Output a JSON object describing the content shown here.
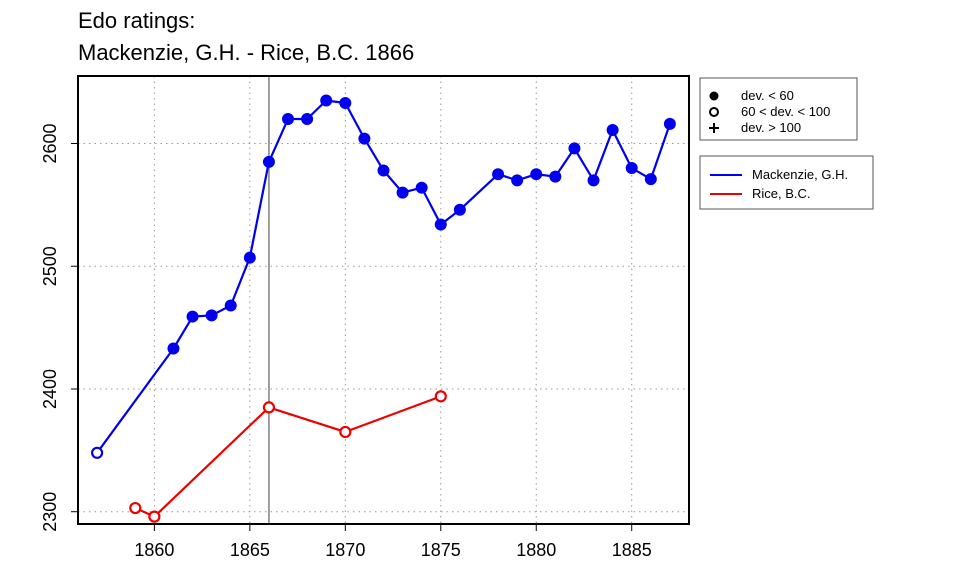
{
  "title_line1": "Edo ratings:",
  "title_line2": "Mackenzie, G.H. - Rice, B.C. 1866",
  "chart_data": {
    "type": "line",
    "title": "Edo ratings: Mackenzie, G.H. - Rice, B.C. 1866",
    "xlabel": "",
    "ylabel": "",
    "xlim": [
      1856,
      1888
    ],
    "ylim": [
      2290,
      2655
    ],
    "x_ticks": [
      1860,
      1865,
      1870,
      1875,
      1880,
      1885
    ],
    "y_ticks": [
      2300,
      2400,
      2500,
      2600
    ],
    "grid": true,
    "reference_line_x": 1866,
    "series": [
      {
        "name": "Mackenzie, G.H.",
        "color": "#0000ee",
        "points": [
          {
            "x": 1857,
            "y": 2348,
            "marker": "open"
          },
          {
            "x": 1861,
            "y": 2433,
            "marker": "filled"
          },
          {
            "x": 1862,
            "y": 2459,
            "marker": "filled"
          },
          {
            "x": 1863,
            "y": 2460,
            "marker": "filled"
          },
          {
            "x": 1864,
            "y": 2468,
            "marker": "filled"
          },
          {
            "x": 1865,
            "y": 2507,
            "marker": "filled"
          },
          {
            "x": 1866,
            "y": 2585,
            "marker": "filled"
          },
          {
            "x": 1867,
            "y": 2620,
            "marker": "filled"
          },
          {
            "x": 1868,
            "y": 2620,
            "marker": "filled"
          },
          {
            "x": 1869,
            "y": 2635,
            "marker": "filled"
          },
          {
            "x": 1870,
            "y": 2633,
            "marker": "filled"
          },
          {
            "x": 1871,
            "y": 2604,
            "marker": "filled"
          },
          {
            "x": 1872,
            "y": 2578,
            "marker": "filled"
          },
          {
            "x": 1873,
            "y": 2560,
            "marker": "filled"
          },
          {
            "x": 1874,
            "y": 2564,
            "marker": "filled"
          },
          {
            "x": 1875,
            "y": 2534,
            "marker": "filled"
          },
          {
            "x": 1876,
            "y": 2546,
            "marker": "filled"
          },
          {
            "x": 1878,
            "y": 2575,
            "marker": "filled"
          },
          {
            "x": 1879,
            "y": 2570,
            "marker": "filled"
          },
          {
            "x": 1880,
            "y": 2575,
            "marker": "filled"
          },
          {
            "x": 1881,
            "y": 2573,
            "marker": "filled"
          },
          {
            "x": 1882,
            "y": 2596,
            "marker": "filled"
          },
          {
            "x": 1883,
            "y": 2570,
            "marker": "filled"
          },
          {
            "x": 1884,
            "y": 2611,
            "marker": "filled"
          },
          {
            "x": 1885,
            "y": 2580,
            "marker": "filled"
          },
          {
            "x": 1886,
            "y": 2571,
            "marker": "filled"
          },
          {
            "x": 1887,
            "y": 2616,
            "marker": "filled"
          }
        ]
      },
      {
        "name": "Rice, B.C.",
        "color": "#ee0000",
        "points": [
          {
            "x": 1859,
            "y": 2303,
            "marker": "open"
          },
          {
            "x": 1860,
            "y": 2296,
            "marker": "open"
          },
          {
            "x": 1866,
            "y": 2385,
            "marker": "open"
          },
          {
            "x": 1870,
            "y": 2365,
            "marker": "open"
          },
          {
            "x": 1875,
            "y": 2394,
            "marker": "open"
          }
        ]
      }
    ],
    "legend_markers": {
      "placement": "top-right, outside plot",
      "items": [
        {
          "marker": "filled",
          "label": "dev. < 60"
        },
        {
          "marker": "open",
          "label": "60 < dev. < 100"
        },
        {
          "marker": "plus",
          "label": "dev. > 100"
        }
      ]
    },
    "legend_series": {
      "placement": "right, outside plot",
      "items": [
        {
          "label": "Mackenzie, G.H.",
          "color": "#0000ee"
        },
        {
          "label": "Rice, B.C.",
          "color": "#ee0000"
        }
      ]
    }
  }
}
